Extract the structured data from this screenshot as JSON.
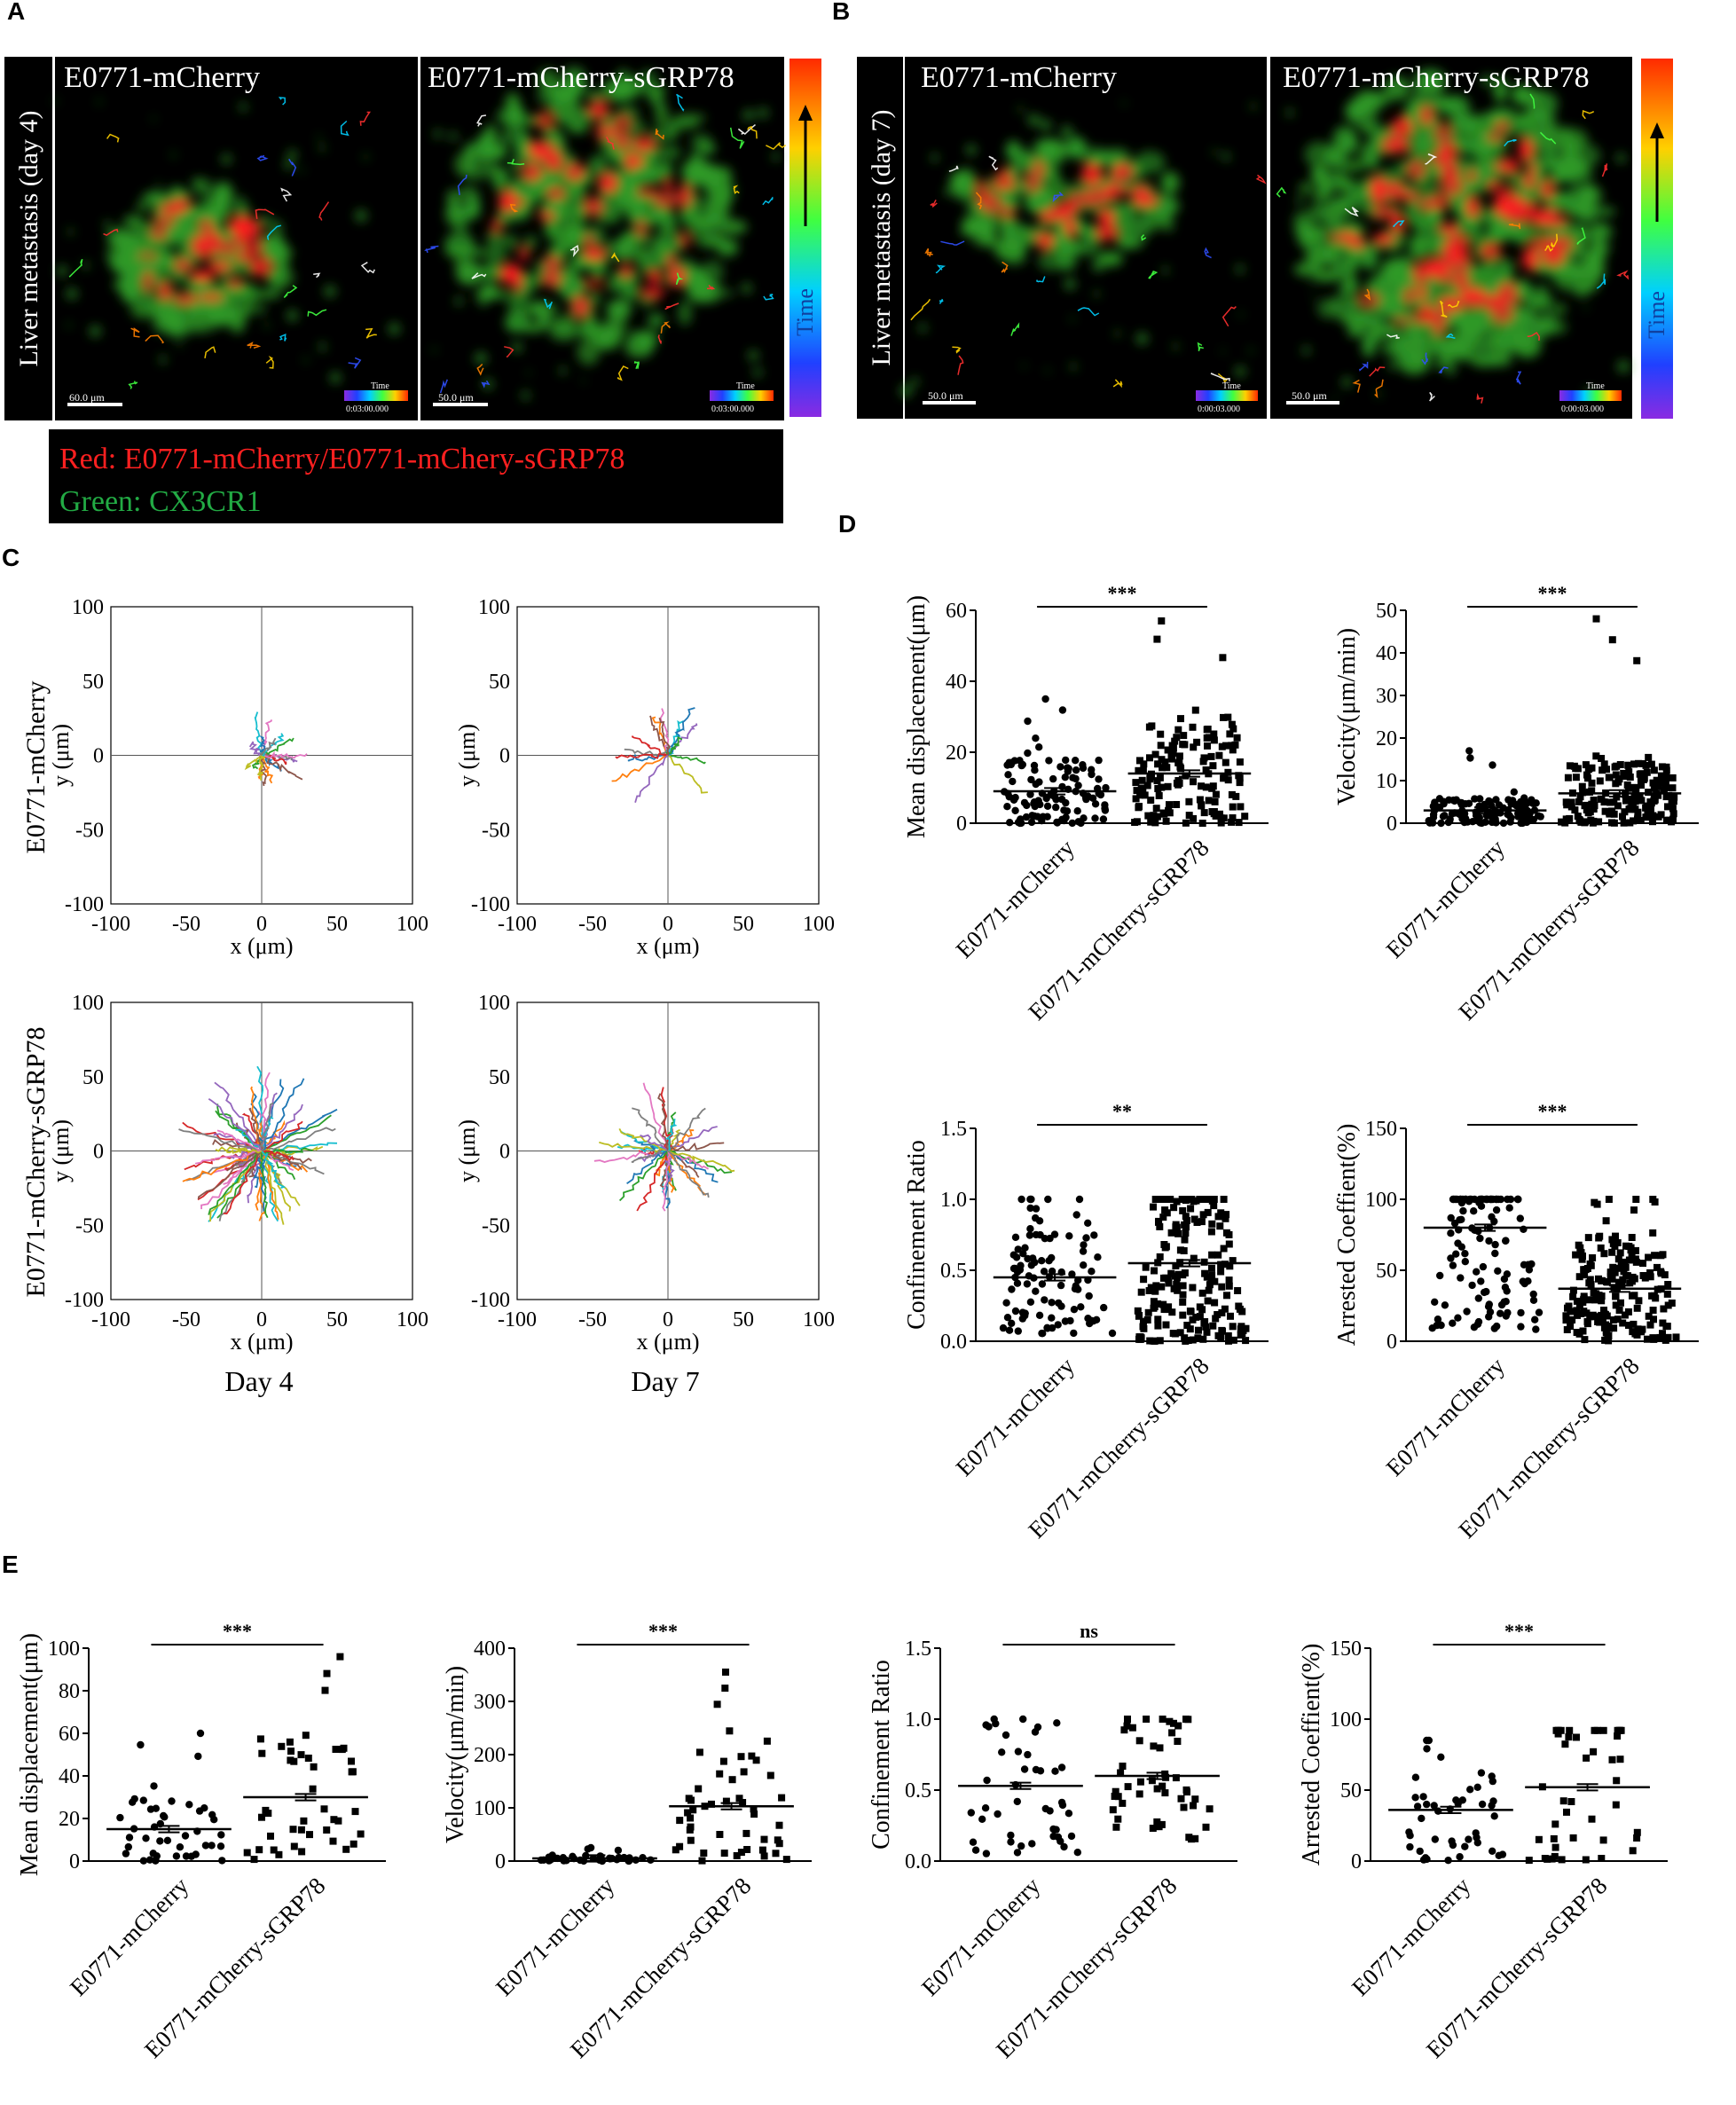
{
  "colors": {
    "mcherry_red": "#ff2020",
    "cx3cr1_green": "#22aa44",
    "tissue_green": "#2e9a26"
  },
  "panels": {
    "A": "A",
    "B": "B",
    "C": "C",
    "D": "D",
    "E": "E"
  },
  "micro": {
    "A": {
      "side_label": "Liver metastasis (day  4)",
      "images": [
        {
          "title": "E0771-mCherry",
          "scale": "60.0 μm",
          "time_label": "Time",
          "timestamp": "0:03:00.000"
        },
        {
          "title": "E0771-mCherry-sGRP78",
          "scale": "50.0 μm",
          "time_label": "Time",
          "timestamp": "0:03:00.000"
        }
      ],
      "colorbar_label": "Time"
    },
    "B": {
      "side_label": "Liver metastasis (day  7)",
      "images": [
        {
          "title": "E0771-mCherry",
          "scale": "50.0 μm",
          "time_label": "Time",
          "timestamp": "0:00:03.000"
        },
        {
          "title": "E0771-mCherry-sGRP78",
          "scale": "50.0 μm",
          "time_label": "Time",
          "timestamp": "0:00:03.000"
        }
      ],
      "colorbar_label": "Time"
    },
    "legend": {
      "red_line": "Red: E0771-mCherry/E0771-mChery-sGRP78",
      "green_line": "Green: CX3CR1"
    }
  },
  "chart_data": [
    {
      "id": "C",
      "type": "line",
      "subtype": "trajectory-plots",
      "xlabel": "x (μm)",
      "ylabel": "y (μm)",
      "xlim": [
        -100,
        100
      ],
      "ylim": [
        -100,
        100
      ],
      "ticks": [
        -100,
        -50,
        0,
        50,
        100
      ],
      "tick_labels": [
        "-100",
        "-50",
        "0",
        "50",
        "100"
      ],
      "row_labels": [
        "E0771-mCherry",
        "E0771-mCherry-sGRP78"
      ],
      "column_labels": [
        "Day 4",
        "Day 7"
      ],
      "panels": [
        {
          "row": 0,
          "col": 0,
          "track_count": 20,
          "max_radius": 30
        },
        {
          "row": 0,
          "col": 1,
          "track_count": 16,
          "max_radius": 42
        },
        {
          "row": 1,
          "col": 0,
          "track_count": 80,
          "max_radius": 60
        },
        {
          "row": 1,
          "col": 1,
          "track_count": 40,
          "max_radius": 50
        }
      ]
    },
    {
      "id": "D",
      "type": "scatter",
      "subtype": "dot-plots",
      "categories": [
        "E0771-mCherry",
        "E0771-mCherry-sGRP78"
      ],
      "plots": [
        {
          "ylabel": "Mean displacement(μm)",
          "ylim": [
            0,
            60
          ],
          "ticks": [
            0,
            20,
            40,
            60
          ],
          "tick_labels": [
            "0",
            "20",
            "40",
            "60"
          ],
          "sig": "***",
          "means": [
            9,
            14
          ],
          "n": [
            110,
            150
          ],
          "max": [
            35,
            57
          ],
          "min": [
            0,
            0
          ]
        },
        {
          "ylabel": "Velocity(μm/min)",
          "ylim": [
            0,
            50
          ],
          "ticks": [
            0,
            10,
            20,
            30,
            40,
            50
          ],
          "tick_labels": [
            "0",
            "10",
            "20",
            "30",
            "40",
            "50"
          ],
          "sig": "***",
          "means": [
            3,
            7
          ],
          "n": [
            120,
            180
          ],
          "max": [
            17,
            48
          ],
          "min": [
            0,
            0
          ]
        },
        {
          "ylabel": "Confinement Ratio",
          "ylim": [
            0,
            1.5
          ],
          "ticks": [
            0,
            0.5,
            1.0,
            1.5
          ],
          "tick_labels": [
            "0.0",
            "0.5",
            "1.0",
            "1.5"
          ],
          "sig": "**",
          "means": [
            0.45,
            0.55
          ],
          "n": [
            100,
            200
          ],
          "max": [
            1.0,
            1.0
          ],
          "min": [
            0.05,
            0.0
          ]
        },
        {
          "ylabel": "Arrested Coeffient(%)",
          "ylim": [
            0,
            150
          ],
          "ticks": [
            0,
            50,
            100,
            150
          ],
          "tick_labels": [
            "0",
            "50",
            "100",
            "150"
          ],
          "sig": "***",
          "means": [
            80,
            37
          ],
          "n": [
            120,
            200
          ],
          "max": [
            100,
            100
          ],
          "min": [
            8,
            0
          ]
        }
      ]
    },
    {
      "id": "E",
      "type": "scatter",
      "subtype": "dot-plots",
      "categories": [
        "E0771-mCherry",
        "E0771-mCherry-sGRP78"
      ],
      "plots": [
        {
          "ylabel": "Mean displacement(μm)",
          "ylim": [
            0,
            100
          ],
          "ticks": [
            0,
            20,
            40,
            60,
            80,
            100
          ],
          "tick_labels": [
            "0",
            "20",
            "40",
            "60",
            "80",
            "100"
          ],
          "sig": "***",
          "means": [
            15,
            30
          ],
          "n": [
            45,
            45
          ],
          "max": [
            60,
            96
          ],
          "min": [
            0,
            0
          ]
        },
        {
          "ylabel": "Velocity(μm/min)",
          "ylim": [
            0,
            400
          ],
          "ticks": [
            0,
            100,
            200,
            300,
            400
          ],
          "tick_labels": [
            "0",
            "100",
            "200",
            "300",
            "400"
          ],
          "sig": "***",
          "means": [
            5,
            103
          ],
          "n": [
            40,
            50
          ],
          "max": [
            25,
            355
          ],
          "min": [
            0,
            0
          ]
        },
        {
          "ylabel": "Confinement Ratio",
          "ylim": [
            0,
            1.5
          ],
          "ticks": [
            0,
            0.5,
            1.0,
            1.5
          ],
          "tick_labels": [
            "0.0",
            "0.5",
            "1.0",
            "1.5"
          ],
          "sig": "ns",
          "means": [
            0.53,
            0.6
          ],
          "n": [
            45,
            50
          ],
          "max": [
            1.0,
            1.0
          ],
          "min": [
            0.05,
            0.15
          ]
        },
        {
          "ylabel": "Arrested Coeffient(%)",
          "ylim": [
            0,
            150
          ],
          "ticks": [
            0,
            50,
            100,
            150
          ],
          "tick_labels": [
            "0",
            "50",
            "100",
            "150"
          ],
          "sig": "***",
          "means": [
            36,
            52
          ],
          "n": [
            45,
            45
          ],
          "max": [
            85,
            92
          ],
          "min": [
            0,
            0
          ]
        }
      ]
    }
  ]
}
